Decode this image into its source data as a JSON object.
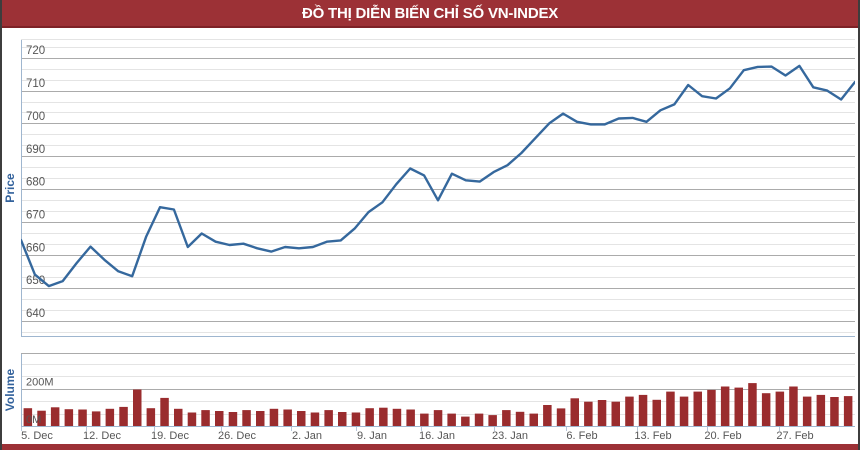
{
  "header": {
    "title": "ĐỒ THỊ DIỄN BIẾN CHỈ SỐ VN-INDEX"
  },
  "colors": {
    "header_bg": "#9c3136",
    "footer_bg": "#9c3136",
    "page_border": "#3d3d3d",
    "price_line": "#35689d",
    "volume_bar": "#9a2c2e",
    "axis_title_text": "#33629c",
    "tick_text": "#565656",
    "grid_major": "#ababab",
    "grid_minor": "#e4e4e4",
    "axis_line": "#9fb6cf",
    "tick_mark": "#b7c6da"
  },
  "chart_data": [
    {
      "type": "line",
      "title": "ĐỒ THỊ DIỄN BIẾN CHỈ SỐ VN-INDEX",
      "ylabel": "Price",
      "xlabel": "",
      "ylim": [
        635,
        725.7
      ],
      "y_ticks": [
        640,
        650,
        660,
        670,
        680,
        690,
        700,
        710,
        720
      ],
      "grid": {
        "major_step": 10,
        "minor_step": 3.3333,
        "grid_on": true
      },
      "legend": "none",
      "x_tick_labels": [
        "5. Dec",
        "12. Dec",
        "19. Dec",
        "26. Dec",
        "2. Jan",
        "9. Jan",
        "16. Jan",
        "23. Jan",
        "6. Feb",
        "13. Feb",
        "20. Feb",
        "27. Feb"
      ],
      "x_tick_pos": [
        0.019,
        0.097,
        0.179,
        0.259,
        0.343,
        0.421,
        0.499,
        0.586,
        0.673,
        0.758,
        0.842,
        0.928
      ],
      "values": [
        664.5,
        654,
        650.5,
        652,
        657.5,
        662.5,
        658.5,
        655,
        653.5,
        665.5,
        674.5,
        673.8,
        662.4,
        666.5,
        664,
        663,
        663.4,
        662,
        661,
        662.4,
        662,
        662.4,
        664,
        664.4,
        668,
        673,
        676,
        681.5,
        686.3,
        684.2,
        676.6,
        684.7,
        682.7,
        682.3,
        685.2,
        687.3,
        691,
        695.5,
        700,
        703,
        700.5,
        699.7,
        699.7,
        701.5,
        701.7,
        700.5,
        704,
        705.8,
        711.7,
        708.3,
        707.6,
        710.7,
        716.2,
        717.2,
        717.3,
        714.6,
        717.5,
        711,
        710,
        707.3,
        712.6
      ]
    },
    {
      "type": "bar",
      "ylabel": "Volume",
      "xlabel": "",
      "ylim_millions": [
        0,
        390
      ],
      "y_tick_labels": [
        "200M",
        "0M"
      ],
      "y_tick_values_millions": [
        200,
        0
      ],
      "grid": {
        "minor_lines_millions": [
          66.7,
          133.3,
          266.7,
          333.3
        ],
        "major_lines_millions": [
          200
        ],
        "grid_on": true
      },
      "values_millions": [
        95,
        82,
        100,
        90,
        88,
        78,
        92,
        102,
        195,
        95,
        150,
        92,
        72,
        85,
        80,
        75,
        85,
        80,
        92,
        88,
        80,
        72,
        85,
        75,
        72,
        95,
        98,
        92,
        88,
        66,
        85,
        66,
        50,
        66,
        58,
        85,
        76,
        66,
        112,
        94,
        148,
        130,
        139,
        130,
        157,
        166,
        140,
        184,
        157,
        184,
        193,
        211,
        205,
        229,
        175,
        184,
        211,
        157,
        166,
        155,
        160
      ]
    }
  ]
}
